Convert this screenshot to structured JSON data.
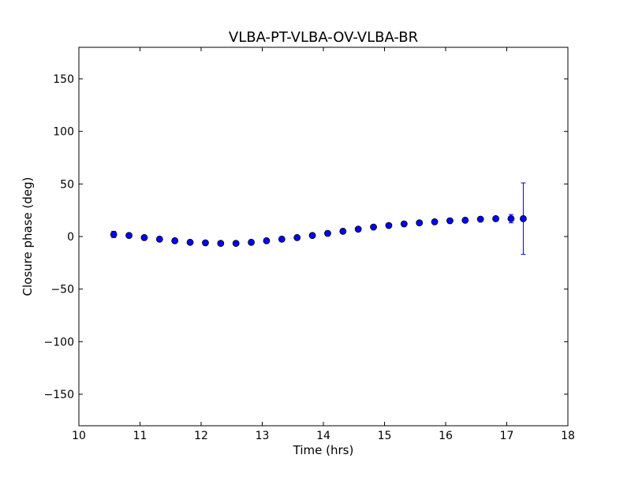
{
  "chart_data": {
    "type": "scatter",
    "title": "VLBA-PT-VLBA-OV-VLBA-BR",
    "xlabel": "Time (hrs)",
    "ylabel": "Closure phase (deg)",
    "xlim": [
      10,
      18
    ],
    "ylim": [
      -180,
      180
    ],
    "xticks": [
      10,
      11,
      12,
      13,
      14,
      15,
      16,
      17,
      18
    ],
    "yticks": [
      -150,
      -100,
      -50,
      0,
      50,
      100,
      150
    ],
    "ytick_labels": [
      "−150",
      "−100",
      "−50",
      "0",
      "50",
      "100",
      "150"
    ],
    "grid": false,
    "marker_color": "#0000ff",
    "errorbar_color": "#0000ff",
    "points": [
      {
        "x": 10.57,
        "y": 2,
        "err": 3
      },
      {
        "x": 10.82,
        "y": 1,
        "err": 1
      },
      {
        "x": 11.07,
        "y": -1,
        "err": 1
      },
      {
        "x": 11.32,
        "y": -2.5,
        "err": 1
      },
      {
        "x": 11.57,
        "y": -4,
        "err": 1
      },
      {
        "x": 11.82,
        "y": -5.5,
        "err": 1
      },
      {
        "x": 12.07,
        "y": -6,
        "err": 1
      },
      {
        "x": 12.32,
        "y": -6.5,
        "err": 1
      },
      {
        "x": 12.57,
        "y": -6.5,
        "err": 1
      },
      {
        "x": 12.82,
        "y": -5.5,
        "err": 1
      },
      {
        "x": 13.07,
        "y": -4,
        "err": 1
      },
      {
        "x": 13.32,
        "y": -2.5,
        "err": 1
      },
      {
        "x": 13.57,
        "y": -1,
        "err": 1
      },
      {
        "x": 13.82,
        "y": 1,
        "err": 1
      },
      {
        "x": 14.07,
        "y": 3,
        "err": 1
      },
      {
        "x": 14.32,
        "y": 5,
        "err": 1
      },
      {
        "x": 14.57,
        "y": 7,
        "err": 1
      },
      {
        "x": 14.82,
        "y": 9,
        "err": 1
      },
      {
        "x": 15.07,
        "y": 10.5,
        "err": 1
      },
      {
        "x": 15.32,
        "y": 12,
        "err": 1
      },
      {
        "x": 15.57,
        "y": 13,
        "err": 1
      },
      {
        "x": 15.82,
        "y": 14,
        "err": 1
      },
      {
        "x": 16.07,
        "y": 15,
        "err": 1
      },
      {
        "x": 16.32,
        "y": 15.5,
        "err": 1
      },
      {
        "x": 16.57,
        "y": 16.5,
        "err": 1
      },
      {
        "x": 16.82,
        "y": 17,
        "err": 2
      },
      {
        "x": 17.07,
        "y": 17,
        "err": 4
      },
      {
        "x": 17.27,
        "y": 17,
        "err": 34
      }
    ]
  }
}
